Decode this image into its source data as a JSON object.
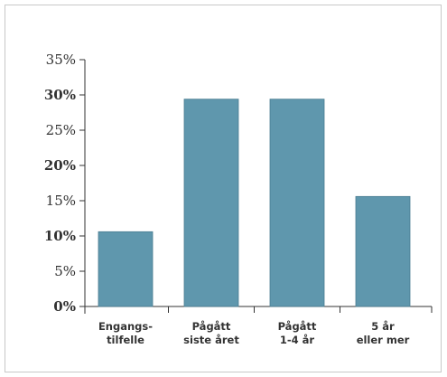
{
  "chart_data": {
    "type": "bar",
    "categories": [
      [
        "Engangs-",
        "tilfelle"
      ],
      [
        "Pågått",
        "siste året"
      ],
      [
        "Pågått",
        "1-4 år"
      ],
      [
        "5 år",
        "eller mer"
      ]
    ],
    "values": [
      10.6,
      29.4,
      29.4,
      15.6
    ],
    "ylim": [
      0,
      35
    ],
    "yticks": [
      0,
      5,
      10,
      15,
      20,
      25,
      30,
      35
    ],
    "ytick_labels": [
      "0%",
      "5%",
      "10%",
      "15%",
      "20%",
      "25%",
      "30%",
      "35%"
    ],
    "bold_ytick_labels": [
      "0%",
      "10%",
      "20%",
      "30%"
    ],
    "bar_color": "#5f97ad",
    "grid": false,
    "legend": "none",
    "title": "",
    "xlabel": "",
    "ylabel": ""
  }
}
